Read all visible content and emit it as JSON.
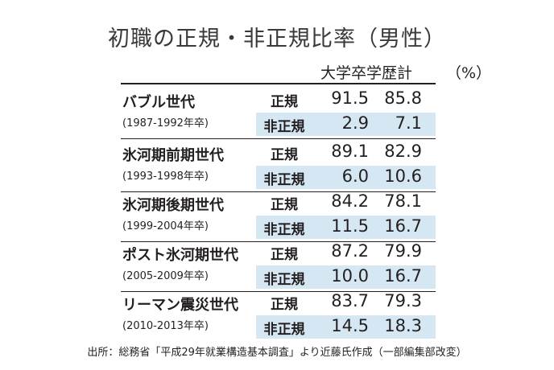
{
  "title": "初職の正規・非正規比率（男性）",
  "col_header": "大学卒学歴計",
  "unit": "（%）",
  "source": "出所：総務省「平成29年就業構造基本調査」より近藤氏作成（一部編集部改変）",
  "chart_data": {
    "type": "table",
    "title": "初職の正規・非正規比率（男性）",
    "columns": [
      "大学卒学歴計",
      ""
    ],
    "unit": "%",
    "groups": [
      {
        "name": "バブル世代",
        "years": "(1987-1992年卒)",
        "rows": [
          {
            "label": "正規",
            "values": [
              "91.5",
              "85.8"
            ]
          },
          {
            "label": "非正規",
            "values": [
              "2.9",
              "7.1"
            ]
          }
        ]
      },
      {
        "name": "氷河期前期世代",
        "years": "(1993-1998年卒)",
        "rows": [
          {
            "label": "正規",
            "values": [
              "89.1",
              "82.9"
            ]
          },
          {
            "label": "非正規",
            "values": [
              "6.0",
              "10.6"
            ]
          }
        ]
      },
      {
        "name": "氷河期後期世代",
        "years": "(1999-2004年卒)",
        "rows": [
          {
            "label": "正規",
            "values": [
              "84.2",
              "78.1"
            ]
          },
          {
            "label": "非正規",
            "values": [
              "11.5",
              "16.7"
            ]
          }
        ]
      },
      {
        "name": "ポスト氷河期世代",
        "years": "(2005-2009年卒)",
        "rows": [
          {
            "label": "正規",
            "values": [
              "87.2",
              "79.9"
            ]
          },
          {
            "label": "非正規",
            "values": [
              "10.0",
              "16.7"
            ]
          }
        ]
      },
      {
        "name": "リーマン震災世代",
        "years": "(2010-2013年卒)",
        "rows": [
          {
            "label": "正規",
            "values": [
              "83.7",
              "79.3"
            ]
          },
          {
            "label": "非正規",
            "values": [
              "14.5",
              "18.3"
            ]
          }
        ]
      }
    ]
  }
}
